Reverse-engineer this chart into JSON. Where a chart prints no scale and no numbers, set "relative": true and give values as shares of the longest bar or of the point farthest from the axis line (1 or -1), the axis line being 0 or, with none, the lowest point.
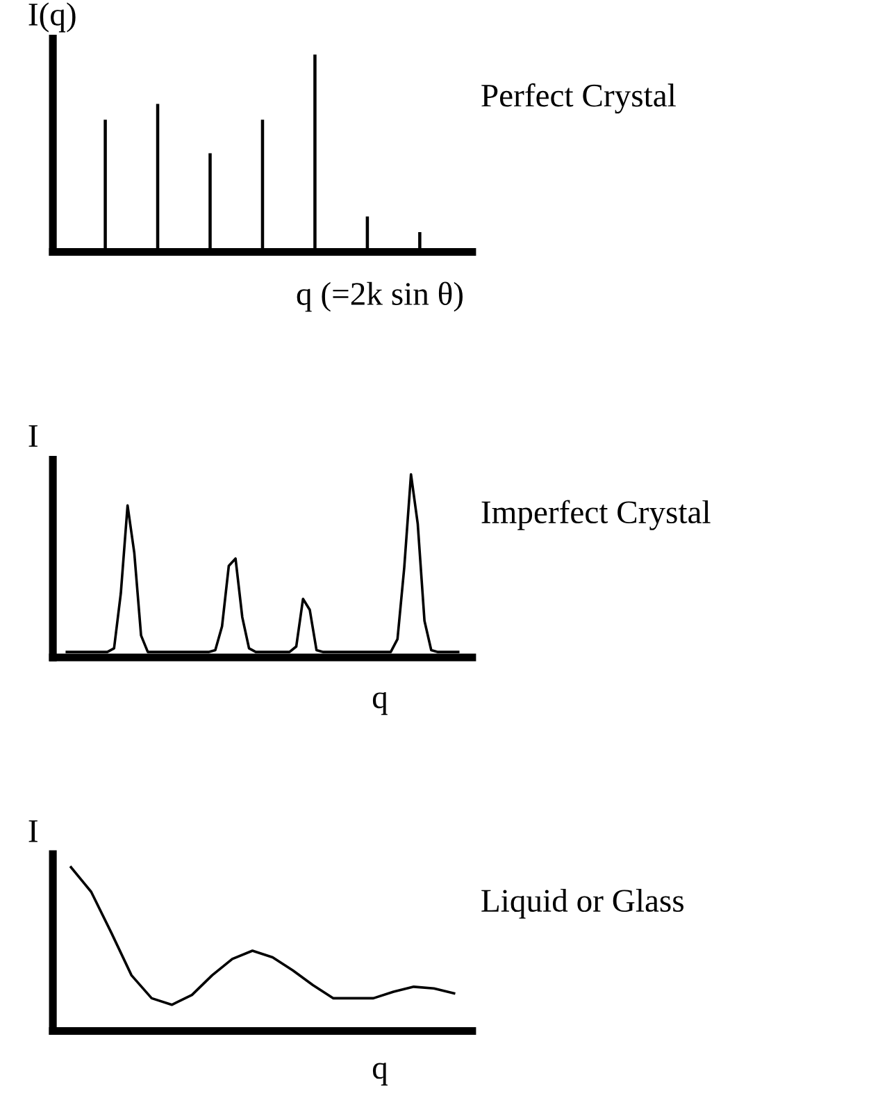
{
  "chart_data": [
    {
      "type": "bar",
      "title": "Perfect Crystal",
      "xlabel": "q (=2k sin θ)",
      "ylabel": "I(q)",
      "relative": true,
      "color": "#000000",
      "categories": [
        null,
        null,
        null,
        null,
        null,
        null,
        null
      ],
      "values": [
        0.67,
        0.75,
        0.5,
        0.67,
        1,
        0.18,
        0.1
      ]
    },
    {
      "type": "line",
      "title": "Imperfect Crystal",
      "xlabel": "q",
      "ylabel": "I",
      "relative": true,
      "color": "#000000",
      "categories": [
        null,
        null,
        null,
        null,
        null,
        null,
        null,
        null,
        null,
        null,
        null,
        null,
        null,
        null,
        null,
        null,
        null,
        null,
        null,
        null,
        null,
        null,
        null,
        null,
        null,
        null,
        null,
        null,
        null,
        null,
        null,
        null,
        null,
        null,
        null,
        null,
        null,
        null,
        null,
        null,
        null,
        null,
        null,
        null,
        null,
        null,
        null,
        null,
        null,
        null,
        null,
        null,
        null,
        null,
        null,
        null,
        null,
        null,
        null
      ],
      "values": [
        0.03,
        0.03,
        0.03,
        0.03,
        0.03,
        0.03,
        0.03,
        0.05,
        0.35,
        0.83,
        0.57,
        0.12,
        0.03,
        0.03,
        0.03,
        0.03,
        0.03,
        0.03,
        0.03,
        0.03,
        0.03,
        0.03,
        0.04,
        0.17,
        0.5,
        0.54,
        0.22,
        0.05,
        0.03,
        0.03,
        0.03,
        0.03,
        0.03,
        0.03,
        0.06,
        0.32,
        0.26,
        0.04,
        0.03,
        0.03,
        0.03,
        0.03,
        0.03,
        0.03,
        0.03,
        0.03,
        0.03,
        0.03,
        0.03,
        0.1,
        0.49,
        1,
        0.73,
        0.2,
        0.04,
        0.03,
        0.03,
        0.03,
        0.03
      ]
    },
    {
      "type": "line",
      "title": "Liquid or Glass",
      "xlabel": "q",
      "ylabel": "I",
      "relative": true,
      "color": "#000000",
      "categories": [
        null,
        null,
        null,
        null,
        null,
        null,
        null,
        null,
        null,
        null,
        null,
        null,
        null,
        null,
        null,
        null,
        null,
        null,
        null,
        null
      ],
      "values": [
        1.0,
        0.85,
        0.6,
        0.34,
        0.2,
        0.16,
        0.22,
        0.34,
        0.44,
        0.49,
        0.45,
        0.37,
        0.28,
        0.2,
        0.2,
        0.2,
        0.24,
        0.27,
        0.26,
        0.23
      ]
    }
  ]
}
